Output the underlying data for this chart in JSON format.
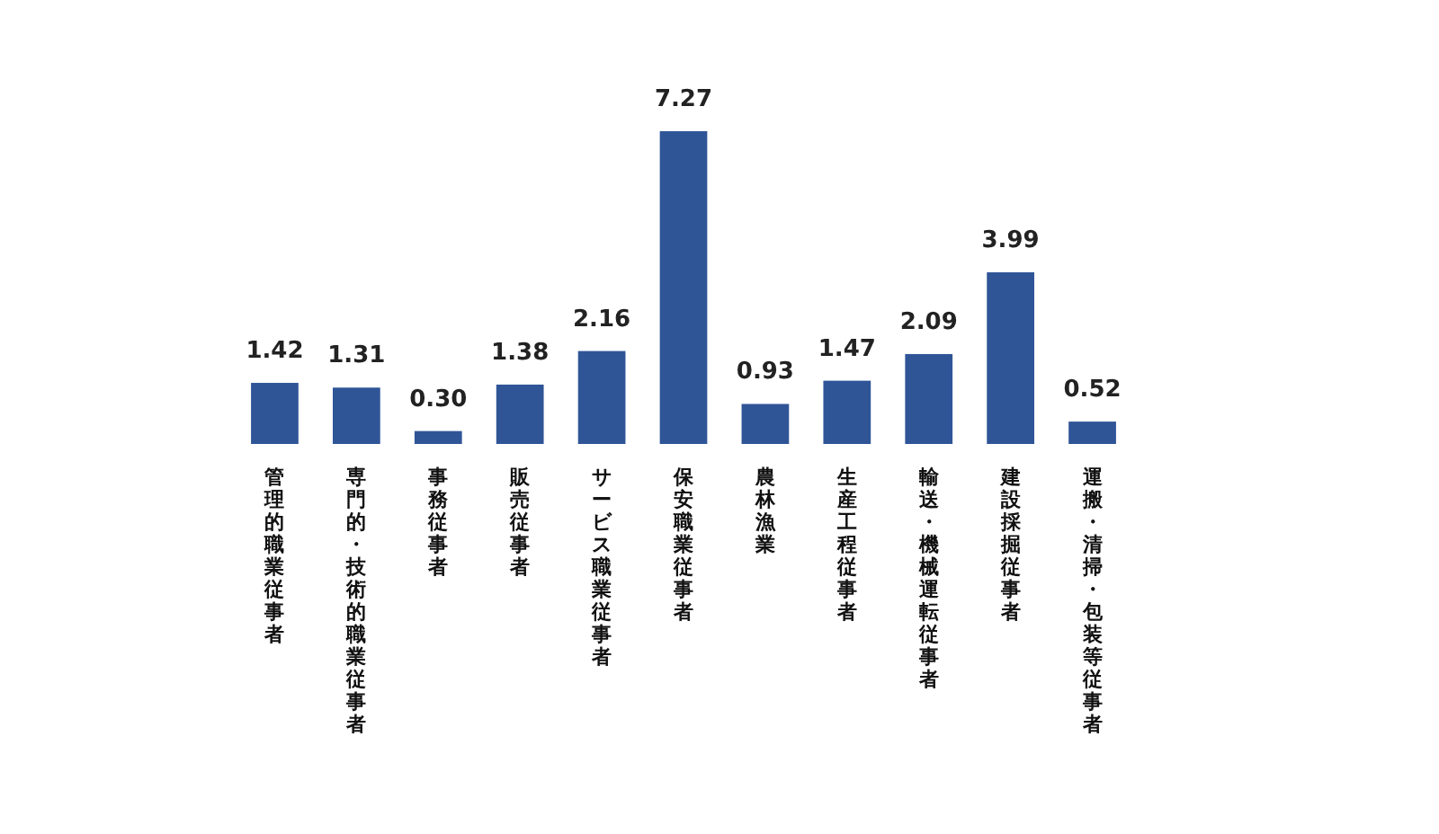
{
  "chart_data": {
    "type": "bar",
    "categories": [
      "管理的職業従事者",
      "専門的・技術的職業従事者",
      "事務従事者",
      "販売従事者",
      "サービス職業従事者",
      "保安職業従事者",
      "農林漁業",
      "生産工程従事者",
      "輸送・機械運転従事者",
      "建設採掘従事者",
      "運搬・清掃・包装等従事者"
    ],
    "values": [
      1.42,
      1.31,
      0.3,
      1.38,
      2.16,
      7.27,
      0.93,
      1.47,
      2.09,
      3.99,
      0.52
    ],
    "value_labels": [
      "1.42",
      "1.31",
      "0.30",
      "1.38",
      "2.16",
      "7.27",
      "0.93",
      "1.47",
      "2.09",
      "3.99",
      "0.52"
    ],
    "color": "#2f5597"
  }
}
